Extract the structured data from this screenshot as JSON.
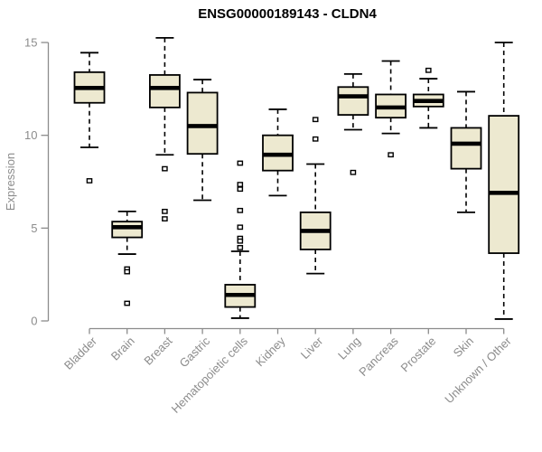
{
  "page": {
    "background": "#ffffff"
  },
  "chart_data": {
    "type": "boxplot",
    "title": "ENSG00000189143 - CLDN4",
    "ylabel": "Expression",
    "xlabel": "",
    "ylim": [
      0,
      15
    ],
    "yticks": [
      0,
      5,
      10,
      15
    ],
    "grid": false,
    "legend": "none",
    "box_fill": "#EDE9D0",
    "box_stroke": "#000000",
    "axis_color": "#8C8C8C",
    "outlier_fill": "#ffffff",
    "categories": [
      "Bladder",
      "Brain",
      "Breast",
      "Gastric",
      "Hematopoietic cells",
      "Kidney",
      "Liver",
      "Lung",
      "Pancreas",
      "Prostate",
      "Skin",
      "Unknown / Other"
    ],
    "series": [
      {
        "category": "Bladder",
        "whisker_low": 9.35,
        "q1": 11.75,
        "median": 12.55,
        "q3": 13.4,
        "whisker_high": 14.45,
        "outliers": [
          7.55
        ]
      },
      {
        "category": "Brain",
        "whisker_low": 3.6,
        "q1": 4.5,
        "median": 5.05,
        "q3": 5.35,
        "whisker_high": 5.9,
        "outliers": [
          2.8,
          2.65,
          0.95
        ]
      },
      {
        "category": "Breast",
        "whisker_low": 8.95,
        "q1": 11.5,
        "median": 12.55,
        "q3": 13.25,
        "whisker_high": 15.25,
        "outliers": [
          8.2,
          5.9,
          5.5
        ]
      },
      {
        "category": "Gastric",
        "whisker_low": 6.5,
        "q1": 9.0,
        "median": 10.5,
        "q3": 12.3,
        "whisker_high": 13.0,
        "outliers": []
      },
      {
        "category": "Hematopoietic cells",
        "whisker_low": 0.15,
        "q1": 0.75,
        "median": 1.4,
        "q3": 1.95,
        "whisker_high": 3.75,
        "outliers": [
          8.5,
          7.35,
          7.1,
          5.95,
          5.05,
          4.45,
          4.3,
          3.95
        ]
      },
      {
        "category": "Kidney",
        "whisker_low": 6.75,
        "q1": 8.1,
        "median": 8.95,
        "q3": 10.0,
        "whisker_high": 11.4,
        "outliers": []
      },
      {
        "category": "Liver",
        "whisker_low": 2.55,
        "q1": 3.85,
        "median": 4.85,
        "q3": 5.85,
        "whisker_high": 8.45,
        "outliers": [
          10.85,
          9.8
        ]
      },
      {
        "category": "Lung",
        "whisker_low": 10.3,
        "q1": 11.1,
        "median": 12.1,
        "q3": 12.6,
        "whisker_high": 13.3,
        "outliers": [
          8.0
        ]
      },
      {
        "category": "Pancreas",
        "whisker_low": 10.1,
        "q1": 10.95,
        "median": 11.5,
        "q3": 12.2,
        "whisker_high": 14.0,
        "outliers": [
          8.95
        ]
      },
      {
        "category": "Prostate",
        "whisker_low": 10.4,
        "q1": 11.55,
        "median": 11.85,
        "q3": 12.2,
        "whisker_high": 13.05,
        "outliers": [
          13.5
        ]
      },
      {
        "category": "Skin",
        "whisker_low": 5.85,
        "q1": 8.2,
        "median": 9.55,
        "q3": 10.4,
        "whisker_high": 12.35,
        "outliers": []
      },
      {
        "category": "Unknown / Other",
        "whisker_low": 0.1,
        "q1": 3.65,
        "median": 6.9,
        "q3": 11.05,
        "whisker_high": 15.0,
        "outliers": []
      }
    ]
  }
}
